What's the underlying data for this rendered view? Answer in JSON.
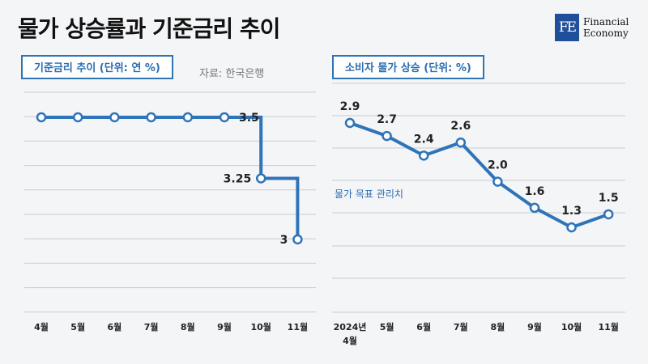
{
  "header": {
    "title": "물가 상승률과 기준금리 추이",
    "logo": {
      "mark": "FE",
      "line1": "Financial",
      "line2": "Economy",
      "color": "#1f4e9a"
    }
  },
  "colors": {
    "line": "#2f74b8",
    "panel_border": "#2f74b3",
    "grid": "#c9ccd2"
  },
  "chart_data": [
    {
      "type": "line",
      "title": "기준금리 추이 (단위: 연 %)",
      "source": "자료: 한국은행",
      "categories": [
        "4월",
        "5월",
        "6월",
        "7월",
        "8월",
        "9월",
        "10월",
        "11월"
      ],
      "step": true,
      "ylim": [
        2.5,
        3.7
      ],
      "series": [
        {
          "values": [
            3.5,
            3.5,
            3.5,
            3.5,
            3.5,
            3.5,
            3.25,
            3
          ]
        }
      ],
      "data_labels": [
        {
          "index": 5,
          "text": "3.5"
        },
        {
          "index": 6,
          "text": "3.25"
        },
        {
          "index": 7,
          "text": "3"
        }
      ],
      "grid": true
    },
    {
      "type": "line",
      "title": "소비자 물가 상승 (단위: %)",
      "categories": [
        "2024년|4월",
        "5월",
        "6월",
        "7월",
        "8월",
        "9월",
        "10월",
        "11월"
      ],
      "ylim": [
        0,
        3.5
      ],
      "series": [
        {
          "values": [
            2.9,
            2.7,
            2.4,
            2.6,
            2.0,
            1.6,
            1.3,
            1.5
          ]
        }
      ],
      "data_labels": [
        "2.9",
        "2.7",
        "2.4",
        "2.6",
        "2.0",
        "1.6",
        "1.3",
        "1.5"
      ],
      "annotation": "물가 목표 관리치",
      "grid": true
    }
  ]
}
